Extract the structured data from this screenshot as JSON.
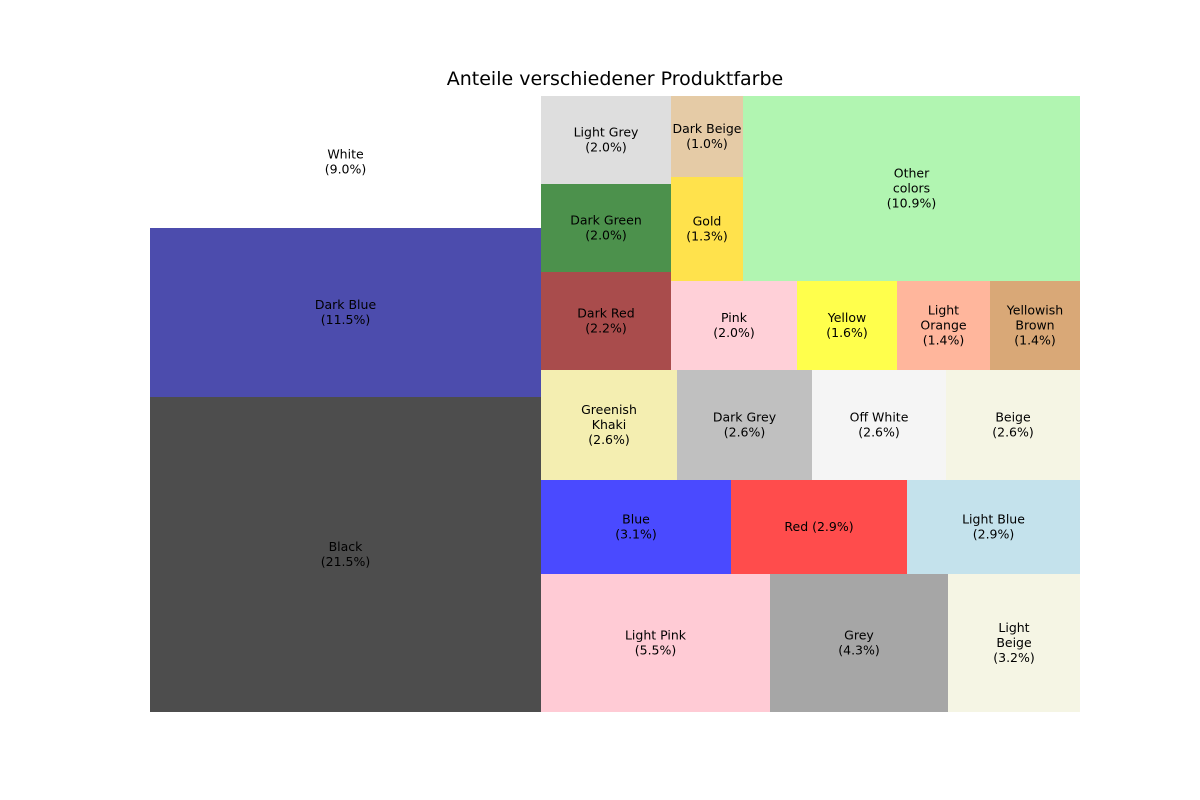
{
  "chart_data": {
    "type": "treemap",
    "title": "Anteile verschiedener Produktfarbe",
    "items": [
      {
        "label": "Black",
        "value": 21.5,
        "pct": "21.5%",
        "color": "#4d4d4d"
      },
      {
        "label": "Dark Blue",
        "value": 11.5,
        "pct": "11.5%",
        "color": "#4c4cad"
      },
      {
        "label": "White",
        "value": 9.0,
        "pct": "9.0%",
        "color": "#ffffff"
      },
      {
        "label": "Light Pink",
        "value": 5.5,
        "pct": "5.5%",
        "color": "#ffcbd5"
      },
      {
        "label": "Grey",
        "value": 4.3,
        "pct": "4.3%",
        "color": "#a6a6a6"
      },
      {
        "label": "Light Beige",
        "value": 3.2,
        "pct": "3.2%",
        "color": "#f5f5e4"
      },
      {
        "label": "Blue",
        "value": 3.1,
        "pct": "3.1%",
        "color": "#4a4aff"
      },
      {
        "label": "Red",
        "value": 2.9,
        "pct": "2.9%",
        "color": "#ff4c4c"
      },
      {
        "label": "Light Blue",
        "value": 2.9,
        "pct": "2.9%",
        "color": "#c4e2ec"
      },
      {
        "label": "Greenish Khaki",
        "value": 2.6,
        "pct": "2.6%",
        "color": "#f4eeb1"
      },
      {
        "label": "Dark Grey",
        "value": 2.6,
        "pct": "2.6%",
        "color": "#c0c0c0"
      },
      {
        "label": "Off White",
        "value": 2.6,
        "pct": "2.6%",
        "color": "#f5f5f5"
      },
      {
        "label": "Beige",
        "value": 2.6,
        "pct": "2.6%",
        "color": "#f5f5e4"
      },
      {
        "label": "Dark Red",
        "value": 2.2,
        "pct": "2.2%",
        "color": "#a94c4c"
      },
      {
        "label": "Pink",
        "value": 2.0,
        "pct": "2.0%",
        "color": "#ffd0d8"
      },
      {
        "label": "Yellow",
        "value": 1.6,
        "pct": "1.6%",
        "color": "#ffff4c"
      },
      {
        "label": "Light Orange",
        "value": 1.4,
        "pct": "1.4%",
        "color": "#ffb69c"
      },
      {
        "label": "Yellowish Brown",
        "value": 1.4,
        "pct": "1.4%",
        "color": "#d9a877"
      },
      {
        "label": "Dark Green",
        "value": 2.0,
        "pct": "2.0%",
        "color": "#4c914c"
      },
      {
        "label": "Light Grey",
        "value": 2.0,
        "pct": "2.0%",
        "color": "#dedede"
      },
      {
        "label": "Gold",
        "value": 1.3,
        "pct": "1.3%",
        "color": "#ffe24c"
      },
      {
        "label": "Dark Beige",
        "value": 1.0,
        "pct": "1.0%",
        "color": "#e5cba6"
      },
      {
        "label": "Other colors",
        "value": 10.9,
        "pct": "10.9%",
        "color": "#b1f5b1"
      }
    ]
  }
}
